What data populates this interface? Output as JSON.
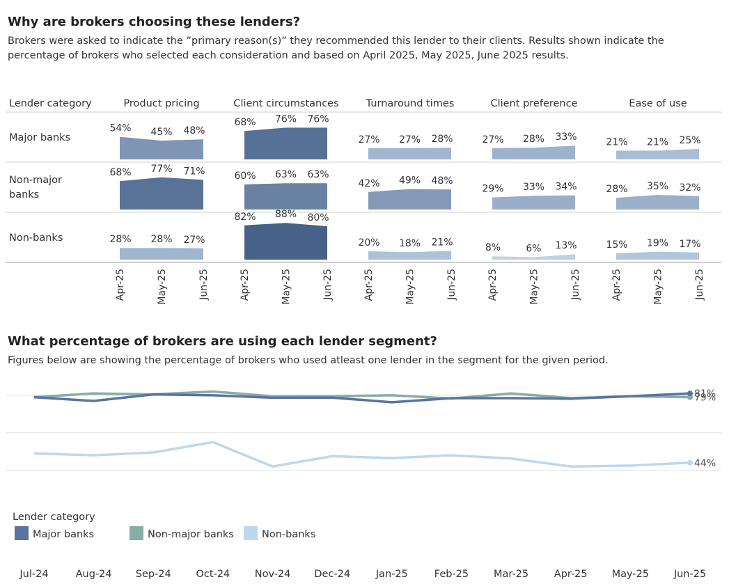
{
  "section1": {
    "title": "Why are brokers choosing these lenders?",
    "description": "Brokers were asked to indicate the ”primary reason(s)” they recommended this lender to their clients. Results shown indicate the percentage of brokers who selected each consideration and based on April 2025, May 2025, June 2025 results."
  },
  "section2": {
    "title": "What percentage of brokers are using each lender segment?",
    "description": "Figures below are showing the percentage of brokers who used atleast one lender in the segment for the given period."
  },
  "chart_data": [
    {
      "type": "area",
      "row_header": "Lender category",
      "columns": [
        "Product pricing",
        "Client circumstances",
        "Turnaround times",
        "Client preference",
        "Ease of use"
      ],
      "rows": [
        "Major banks",
        "Non-major banks",
        "Non-banks"
      ],
      "x": [
        "Apr-25",
        "May-25",
        "Jun-25"
      ],
      "ylim": [
        0,
        100
      ],
      "values": [
        [
          [
            54,
            45,
            48
          ],
          [
            68,
            76,
            76
          ],
          [
            27,
            27,
            28
          ],
          [
            27,
            28,
            33
          ],
          [
            21,
            21,
            25
          ]
        ],
        [
          [
            68,
            77,
            71
          ],
          [
            60,
            63,
            63
          ],
          [
            42,
            49,
            48
          ],
          [
            29,
            33,
            34
          ],
          [
            28,
            35,
            32
          ]
        ],
        [
          [
            28,
            28,
            27
          ],
          [
            82,
            88,
            80
          ],
          [
            20,
            18,
            21
          ],
          [
            8,
            6,
            13
          ],
          [
            15,
            19,
            17
          ]
        ]
      ],
      "color_scale": [
        "#c3d7ea",
        "#3f5a83"
      ]
    },
    {
      "type": "line",
      "x": [
        "Jul-24",
        "Aug-24",
        "Sep-24",
        "Oct-24",
        "Nov-24",
        "Dec-24",
        "Jan-25",
        "Feb-25",
        "Mar-25",
        "Apr-25",
        "May-25",
        "Jun-25"
      ],
      "series": [
        {
          "name": "Major banks",
          "color": "#5a73a0",
          "values": [
            79,
            77,
            80.5,
            80,
            78.7,
            78.8,
            76.3,
            78.5,
            78.5,
            78.2,
            79.5,
            81
          ]
        },
        {
          "name": "Non-major banks",
          "color": "#86ada8",
          "values": [
            79,
            81,
            80.5,
            82,
            79.5,
            79.5,
            80,
            78.3,
            81,
            78.5,
            79.5,
            79
          ]
        },
        {
          "name": "Non-banks",
          "color": "#bcd8ee",
          "values": [
            49,
            48,
            49.5,
            55,
            42,
            47.5,
            46.5,
            48,
            46.3,
            42,
            42.5,
            44
          ]
        }
      ],
      "end_labels": [
        "81%",
        "79%",
        "44%"
      ],
      "ylim": [
        25,
        90
      ],
      "grid": true,
      "legend": {
        "title": "Lender category",
        "placement": "bottom-left"
      }
    }
  ]
}
